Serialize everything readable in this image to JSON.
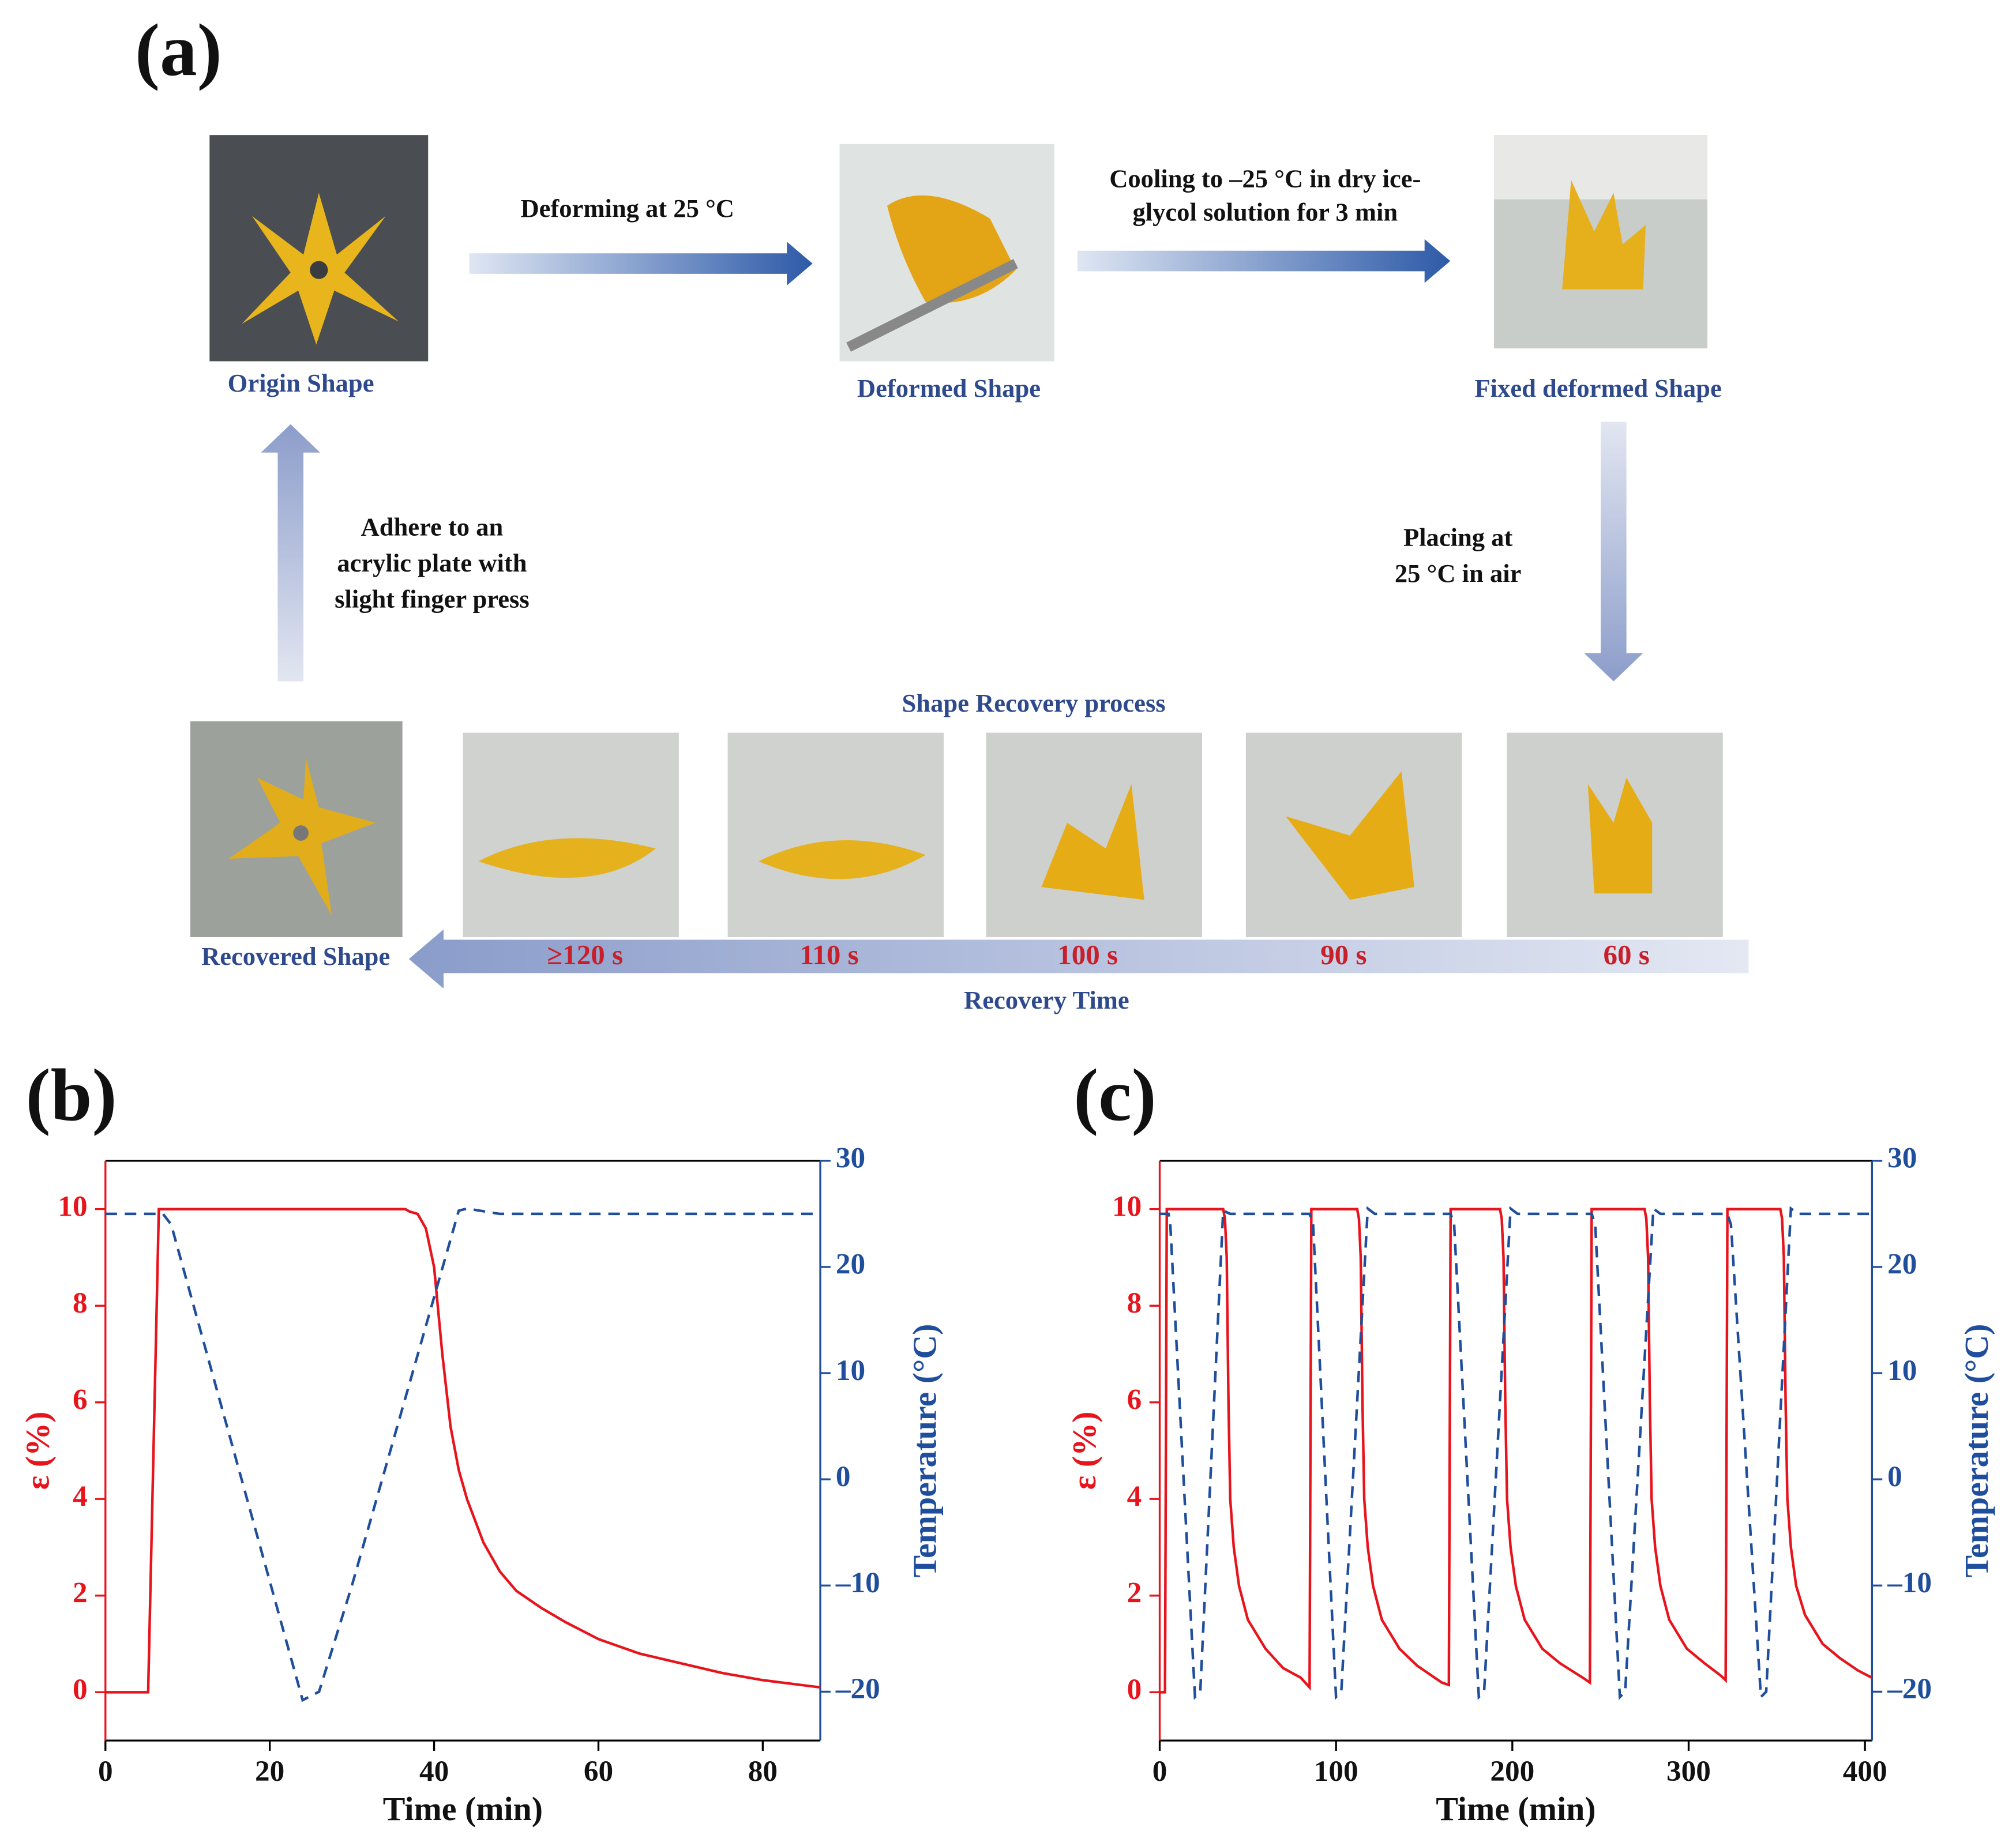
{
  "panel_a": {
    "label": "(a)",
    "shapes": [
      "Origin Shape",
      "Deformed Shape",
      "Fixed deformed Shape",
      "Recovered Shape"
    ],
    "deforming": "Deforming at 25 °C",
    "cooling": [
      "Cooling to –25 °C in dry ice-",
      "glycol solution for 3 min"
    ],
    "placing": [
      "Placing  at",
      "25 °C in air"
    ],
    "adhere": [
      "Adhere to an",
      "acrylic plate with",
      "slight finger press"
    ],
    "process_title": "Shape Recovery process",
    "times": [
      "≥120 s",
      "110 s",
      "100 s",
      "90 s",
      "60 s"
    ],
    "time_axis": "Recovery Time"
  },
  "chart_data": [
    {
      "type": "line",
      "panel_label": "(b)",
      "xlabel": "Time (min)",
      "ylabel": "ε (%)",
      "y2label": "Temperature (°C)",
      "xlim": [
        0,
        87
      ],
      "xticks": [
        0,
        20,
        40,
        60,
        80
      ],
      "ylim": [
        -1,
        11
      ],
      "yticks": [
        0,
        2,
        4,
        6,
        8,
        10
      ],
      "y2lim": [
        -24.6,
        30
      ],
      "y2ticks": [
        {
          "value": -20,
          "label": "–20"
        },
        {
          "value": -10,
          "label": "–10"
        },
        0,
        10,
        20,
        30
      ],
      "series": [
        {
          "color": "#e8141c",
          "axis": "y",
          "dash": false,
          "x": [
            0,
            5.2,
            6.5,
            36.5,
            37,
            38,
            39,
            40,
            41,
            42,
            43,
            44,
            46,
            48,
            50,
            53,
            56,
            60,
            65,
            70,
            75,
            80,
            87
          ],
          "values": [
            0,
            0,
            10,
            10,
            9.95,
            9.9,
            9.6,
            8.8,
            7,
            5.5,
            4.6,
            4,
            3.1,
            2.5,
            2.1,
            1.75,
            1.45,
            1.1,
            0.8,
            0.6,
            0.4,
            0.25,
            0.1
          ]
        },
        {
          "color": "#1f4e9c",
          "axis": "y2",
          "dash": true,
          "x": [
            0,
            7,
            8,
            24,
            26,
            30,
            43,
            44,
            48,
            87
          ],
          "values": [
            25,
            25,
            24,
            -20.8,
            -20,
            -10,
            25.3,
            25.5,
            25,
            25
          ]
        }
      ]
    },
    {
      "type": "line",
      "panel_label": "(c)",
      "xlabel": "Time (min)",
      "ylabel": "ε (%)",
      "y2label": "Temperature (°C)",
      "xlim": [
        0,
        404
      ],
      "xticks": [
        0,
        100,
        200,
        300,
        400
      ],
      "ylim": [
        -1,
        11
      ],
      "yticks": [
        0,
        2,
        4,
        6,
        8,
        10
      ],
      "y2lim": [
        -24.6,
        30
      ],
      "y2ticks": [
        {
          "value": -20,
          "label": "–20"
        },
        {
          "value": -10,
          "label": "–10"
        },
        0,
        10,
        20,
        30
      ],
      "series": [
        {
          "color": "#e8141c",
          "axis": "y",
          "dash": false,
          "x": [
            0,
            3,
            4,
            36,
            37,
            38,
            39,
            40,
            42,
            45,
            50,
            60,
            70,
            80,
            85,
            86,
            112,
            113,
            114,
            115,
            116,
            118,
            121,
            126,
            136,
            146,
            160,
            164,
            165,
            193,
            194,
            195,
            196,
            197,
            199,
            202,
            207,
            217,
            227,
            240,
            244,
            245,
            275,
            276,
            277,
            278,
            279,
            281,
            284,
            289,
            299,
            309,
            318,
            321,
            322,
            352,
            353,
            354,
            355,
            356,
            358,
            361,
            366,
            376,
            386,
            396,
            404
          ],
          "values": [
            0,
            0,
            10,
            10,
            9.8,
            9,
            6,
            4,
            3,
            2.2,
            1.5,
            0.9,
            0.5,
            0.3,
            0.1,
            10,
            10,
            9.8,
            9,
            6,
            4,
            3,
            2.2,
            1.5,
            0.9,
            0.55,
            0.2,
            0.15,
            10,
            10,
            9.8,
            9,
            6,
            4,
            3,
            2.2,
            1.5,
            0.9,
            0.6,
            0.3,
            0.2,
            10,
            10,
            9.8,
            9,
            6,
            4,
            3,
            2.2,
            1.5,
            0.9,
            0.6,
            0.35,
            0.25,
            10,
            10,
            9.8,
            9,
            6,
            4,
            3,
            2.2,
            1.6,
            1.0,
            0.7,
            0.45,
            0.3
          ]
        },
        {
          "color": "#1f4e9c",
          "axis": "y2",
          "dash": true,
          "x": [
            0,
            5,
            6,
            20,
            23,
            36,
            40,
            85,
            87,
            100,
            103,
            118,
            122,
            165,
            167,
            181,
            184,
            199,
            203,
            245,
            247,
            261,
            264,
            280,
            284,
            322,
            324,
            341,
            344,
            358,
            362,
            404
          ],
          "values": [
            25,
            25,
            24,
            -20.5,
            -20,
            25.3,
            25,
            25,
            24,
            -20.5,
            -20,
            25.5,
            25,
            25,
            24,
            -20.5,
            -20,
            25.5,
            25,
            25,
            24,
            -20.5,
            -20,
            25.5,
            25,
            25,
            24,
            -20.5,
            -20,
            25.5,
            25,
            25
          ]
        }
      ]
    }
  ]
}
